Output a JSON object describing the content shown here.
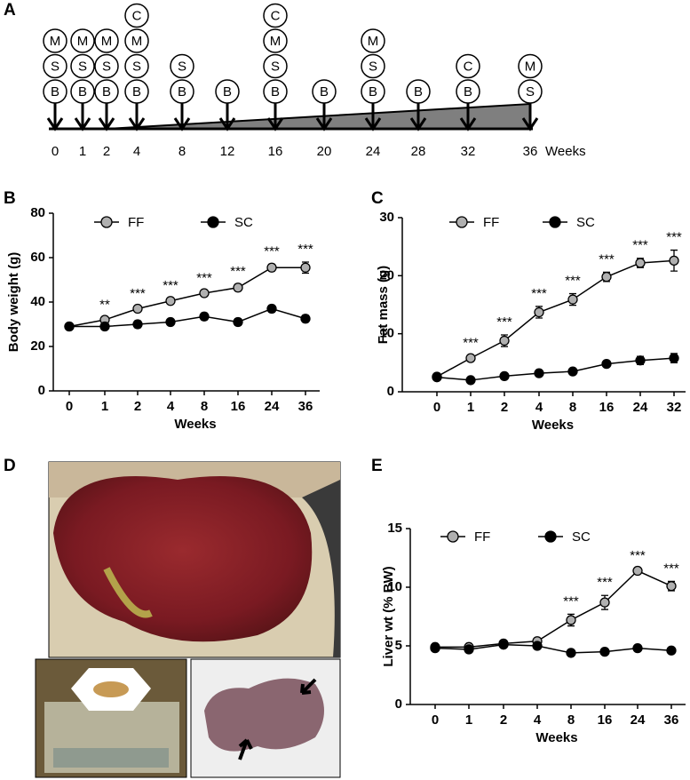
{
  "panel_letters": [
    "A",
    "B",
    "C",
    "D",
    "E"
  ],
  "timeline": {
    "axis_label": "Weeks",
    "points": [
      {
        "week": "0",
        "markers": [
          "M",
          "S",
          "B"
        ]
      },
      {
        "week": "1",
        "markers": [
          "M",
          "S",
          "B"
        ]
      },
      {
        "week": "2",
        "markers": [
          "M",
          "S",
          "B"
        ]
      },
      {
        "week": "4",
        "markers": [
          "C",
          "M",
          "S",
          "B"
        ]
      },
      {
        "week": "8",
        "markers": [
          "S",
          "B"
        ]
      },
      {
        "week": "12",
        "markers": [
          "B"
        ]
      },
      {
        "week": "16",
        "markers": [
          "C",
          "M",
          "S",
          "B"
        ]
      },
      {
        "week": "20",
        "markers": [
          "B"
        ]
      },
      {
        "week": "24",
        "markers": [
          "M",
          "S",
          "B"
        ]
      },
      {
        "week": "28",
        "markers": [
          "B"
        ]
      },
      {
        "week": "32",
        "markers": [
          "C",
          "B"
        ]
      },
      {
        "week": "36",
        "markers": [
          "M",
          "S"
        ]
      }
    ]
  },
  "chart_data": [
    {
      "type": "line",
      "y_label": "Body weight (g)",
      "x_label": "Weeks",
      "categories": [
        "0",
        "1",
        "2",
        "4",
        "8",
        "16",
        "24",
        "36"
      ],
      "series": [
        {
          "name": "FF",
          "color": "#b0b0b0",
          "values": [
            29,
            32,
            37,
            40.5,
            44,
            46.5,
            55.5,
            55.5
          ],
          "errors": [
            1,
            1,
            1,
            1,
            1,
            1.5,
            1.5,
            2.5
          ]
        },
        {
          "name": "SC",
          "color": "#000000",
          "values": [
            29,
            29,
            30,
            31,
            33.5,
            31,
            37,
            32.5
          ],
          "errors": [
            1,
            1,
            1.5,
            1,
            1.5,
            1.5,
            1.5,
            1.5
          ]
        }
      ],
      "annotations": [
        null,
        "**",
        "***",
        "***",
        "***",
        "***",
        "***",
        "***"
      ],
      "ylim": [
        0,
        80
      ],
      "yticks": [
        0,
        20,
        40,
        60,
        80
      ]
    },
    {
      "type": "line",
      "y_label": "Fat mass (g)",
      "x_label": "Weeks",
      "categories": [
        "0",
        "1",
        "2",
        "4",
        "8",
        "16",
        "24",
        "32"
      ],
      "series": [
        {
          "name": "FF",
          "color": "#b0b0b0",
          "values": [
            2.6,
            5.8,
            8.8,
            13.7,
            15.9,
            19.8,
            22.2,
            22.6
          ],
          "errors": [
            0.3,
            0.4,
            1.0,
            1.0,
            1.0,
            0.8,
            0.8,
            1.8
          ]
        },
        {
          "name": "SC",
          "color": "#000000",
          "values": [
            2.5,
            2.0,
            2.7,
            3.2,
            3.5,
            4.8,
            5.4,
            5.8
          ],
          "errors": [
            0.3,
            0.3,
            0.3,
            0.4,
            0.4,
            0.5,
            0.7,
            0.8
          ]
        }
      ],
      "annotations": [
        null,
        "***",
        "***",
        "***",
        "***",
        "***",
        "***",
        "***"
      ],
      "ylim": [
        0,
        30
      ],
      "yticks": [
        0,
        10,
        20,
        30
      ]
    },
    {
      "type": "line",
      "y_label": "Liver wt (% BW)",
      "x_label": "Weeks",
      "categories": [
        "0",
        "1",
        "2",
        "4",
        "8",
        "16",
        "24",
        "36"
      ],
      "series": [
        {
          "name": "FF",
          "color": "#b0b0b0",
          "values": [
            4.9,
            4.9,
            5.2,
            5.4,
            7.2,
            8.7,
            11.4,
            10.1
          ],
          "errors": [
            0.2,
            0.2,
            0.2,
            0.2,
            0.5,
            0.6,
            0.2,
            0.4
          ]
        },
        {
          "name": "SC",
          "color": "#000000",
          "values": [
            4.8,
            4.7,
            5.1,
            5.0,
            4.4,
            4.5,
            4.8,
            4.6
          ],
          "errors": [
            0.2,
            0.2,
            0.2,
            0.2,
            0.1,
            0.1,
            0.15,
            0.15
          ]
        }
      ],
      "annotations": [
        null,
        null,
        null,
        null,
        "***",
        "***",
        "***",
        "***"
      ],
      "ylim": [
        0,
        15
      ],
      "yticks": [
        0,
        5,
        10,
        15
      ]
    }
  ]
}
